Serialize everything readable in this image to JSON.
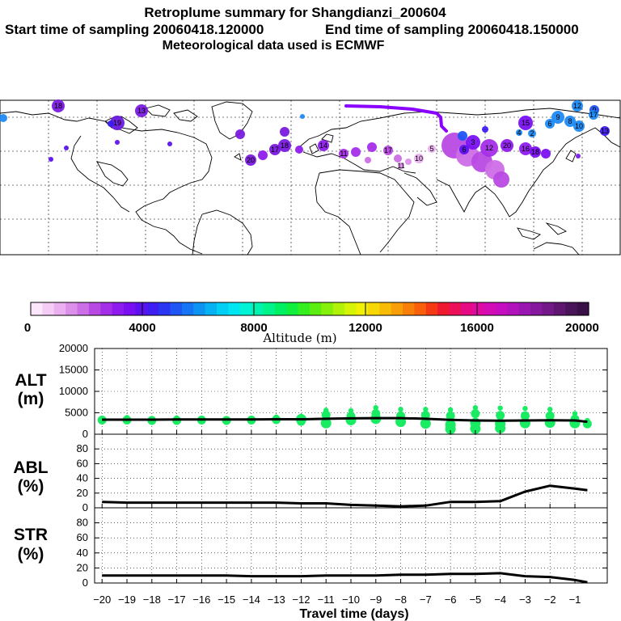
{
  "header": {
    "title": "Retroplume summary for Shangdianzi_200604",
    "line2_start": "Start time of sampling 20060418.120000",
    "line2_end": "End time of sampling 20060418.150000",
    "line3": "Meteorological data used is ECMWF"
  },
  "colorbar": {
    "title": "Altitude (m)",
    "tick_labels": [
      "0",
      "4000",
      "8000",
      "12000",
      "16000",
      "20000"
    ],
    "colors": [
      "#fbe6fb",
      "#f5ccf5",
      "#eab0f0",
      "#dd90ea",
      "#cc6ee6",
      "#b84ae3",
      "#a52fe8",
      "#8f1cee",
      "#7a10f2",
      "#5c12f0",
      "#3e1ef0",
      "#2a36f2",
      "#1e55f4",
      "#1575f4",
      "#0d94f3",
      "#07b2f2",
      "#03cef3",
      "#00e6f2",
      "#00f4d5",
      "#00f4b0",
      "#00f48a",
      "#00f063",
      "#10ee3e",
      "#35ee20",
      "#5cee10",
      "#86f00b",
      "#b0f208",
      "#d6f406",
      "#f2f004",
      "#f7d804",
      "#f8bc06",
      "#f89e08",
      "#f8800a",
      "#f8600c",
      "#f43a14",
      "#ef1a30",
      "#eb1058",
      "#e60b82",
      "#e00aa2",
      "#d40cb6",
      "#c40ec0",
      "#b012bc",
      "#9a16b0",
      "#86189e",
      "#721888",
      "#5e1670",
      "#4a145a",
      "#3a1048"
    ]
  },
  "map": {
    "labels": [
      "10",
      "11",
      "12",
      "13",
      "14",
      "15",
      "16",
      "17",
      "18",
      "19",
      "20",
      "1",
      "2",
      "3",
      "4",
      "5",
      "6",
      "7",
      "8",
      "9"
    ]
  },
  "panels": {
    "alt": {
      "line1": "ALT",
      "line2": "(m)",
      "yticks": [
        "0",
        "5000",
        "10000",
        "15000",
        "20000"
      ]
    },
    "abl": {
      "line1": "ABL",
      "line2": "(%)",
      "yticks": [
        "0",
        "20",
        "40",
        "60",
        "80"
      ]
    },
    "str": {
      "line1": "STR",
      "line2": "(%)",
      "yticks": [
        "0",
        "20",
        "40",
        "60",
        "80"
      ]
    }
  },
  "xaxis": {
    "label": "Travel time (days)",
    "tick_labels": [
      "−20",
      "−19",
      "−18",
      "−17",
      "−16",
      "−15",
      "−14",
      "−13",
      "−12",
      "−11",
      "−10",
      "−9",
      "−8",
      "−7",
      "−6",
      "−5",
      "−4",
      "−3",
      "−2",
      "−1"
    ]
  },
  "chart_data": [
    {
      "type": "line",
      "title": "ALT (m)",
      "xlabel": "Travel time (days)",
      "ylabel": "ALT (m)",
      "xlim": [
        -20.3,
        0.3
      ],
      "ylim": [
        0,
        20000
      ],
      "x": [
        -20,
        -19,
        -18,
        -17,
        -16,
        -15,
        -14,
        -13,
        -12,
        -11,
        -10,
        -9,
        -8,
        -7,
        -6,
        -5,
        -4,
        -3,
        -2,
        -1,
        -0.5
      ],
      "series": [
        {
          "name": "mean altitude",
          "values": [
            3400,
            3400,
            3400,
            3450,
            3450,
            3450,
            3450,
            3500,
            3500,
            3600,
            3700,
            3750,
            3750,
            3600,
            3350,
            3200,
            3150,
            3200,
            3250,
            3200,
            2900
          ]
        }
      ],
      "scatter_points": [
        {
          "x": -20,
          "y": [
            3600,
            3300
          ]
        },
        {
          "x": -19,
          "y": [
            3900,
            3300
          ]
        },
        {
          "x": -18,
          "y": [
            3700,
            3200
          ]
        },
        {
          "x": -17,
          "y": [
            3800,
            3200
          ]
        },
        {
          "x": -16,
          "y": [
            3700,
            3300
          ]
        },
        {
          "x": -15,
          "y": [
            3600,
            3200
          ]
        },
        {
          "x": -14,
          "y": [
            3700,
            3300
          ]
        },
        {
          "x": -13,
          "y": [
            4000,
            3400
          ]
        },
        {
          "x": -12,
          "y": [
            4200,
            3000,
            3500
          ]
        },
        {
          "x": -11,
          "y": [
            5600,
            4500,
            2600
          ]
        },
        {
          "x": -10,
          "y": [
            5500,
            4200,
            3300
          ]
        },
        {
          "x": -9,
          "y": [
            6200,
            4800,
            3600
          ]
        },
        {
          "x": -8,
          "y": [
            5800,
            4300,
            2900
          ]
        },
        {
          "x": -7,
          "y": [
            5800,
            4400,
            2500
          ]
        },
        {
          "x": -6,
          "y": [
            5700,
            4300,
            2200,
            1200
          ]
        },
        {
          "x": -5,
          "y": [
            6200,
            4800,
            2600,
            1300
          ]
        },
        {
          "x": -4,
          "y": [
            6100,
            4400,
            2400,
            1400
          ]
        },
        {
          "x": -3,
          "y": [
            6000,
            4300,
            2600
          ]
        },
        {
          "x": -2,
          "y": [
            5800,
            4300,
            2700
          ]
        },
        {
          "x": -1,
          "y": [
            4800,
            3500,
            2600
          ]
        },
        {
          "x": -0.5,
          "y": [
            3200,
            2400
          ]
        }
      ]
    },
    {
      "type": "line",
      "title": "ABL (%)",
      "xlabel": "Travel time (days)",
      "ylabel": "ABL (%)",
      "xlim": [
        -20.3,
        0.3
      ],
      "ylim": [
        0,
        100
      ],
      "x": [
        -20,
        -19,
        -18,
        -17,
        -16,
        -15,
        -14,
        -13,
        -12,
        -11,
        -10,
        -9,
        -8,
        -7,
        -6,
        -5,
        -4,
        -3,
        -2,
        -1,
        -0.5
      ],
      "series": [
        {
          "name": "ABL fraction",
          "values": [
            8,
            7,
            7,
            7,
            7,
            7,
            7,
            7,
            6,
            6,
            4,
            3,
            2,
            3,
            8,
            8,
            9,
            22,
            30,
            26,
            24
          ]
        }
      ]
    },
    {
      "type": "line",
      "title": "STR (%)",
      "xlabel": "Travel time (days)",
      "ylabel": "STR (%)",
      "xlim": [
        -20.3,
        0.3
      ],
      "ylim": [
        0,
        100
      ],
      "x": [
        -20,
        -19,
        -18,
        -17,
        -16,
        -15,
        -14,
        -13,
        -12,
        -11,
        -10,
        -9,
        -8,
        -7,
        -6,
        -5,
        -4,
        -3,
        -2,
        -1,
        -0.5
      ],
      "series": [
        {
          "name": "STR fraction",
          "values": [
            10,
            10,
            10,
            10,
            10,
            10,
            9,
            9,
            9,
            10,
            10,
            10,
            11,
            11,
            12,
            12,
            13,
            9,
            8,
            4,
            1
          ]
        }
      ]
    }
  ]
}
